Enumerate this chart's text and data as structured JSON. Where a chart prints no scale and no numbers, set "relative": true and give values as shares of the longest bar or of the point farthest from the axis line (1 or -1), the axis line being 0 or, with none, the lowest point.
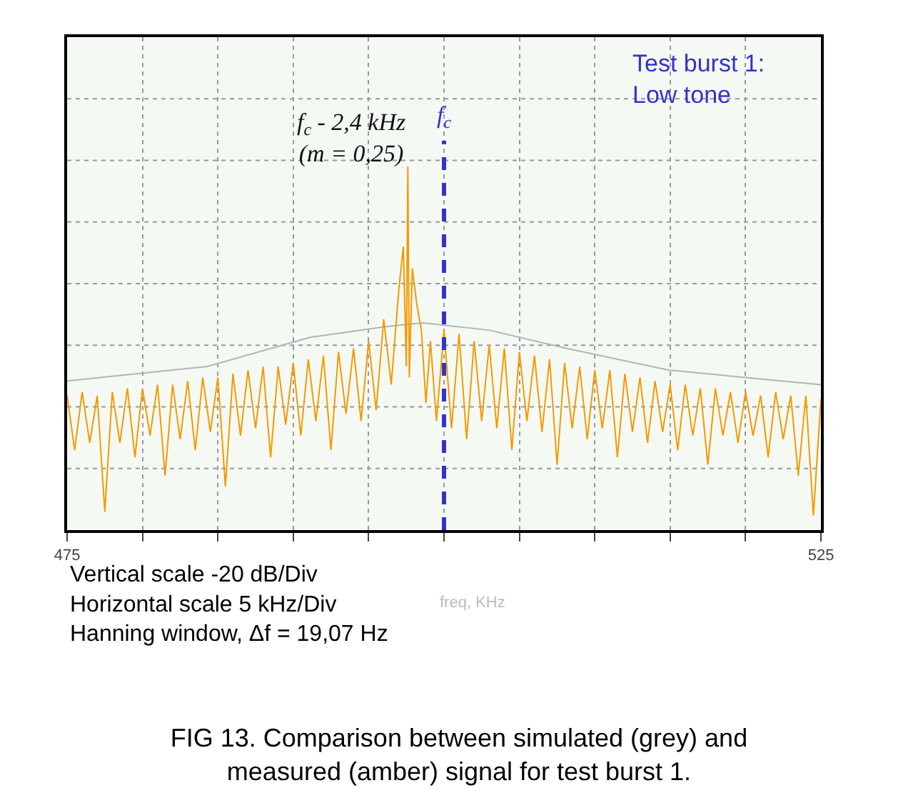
{
  "chart_data": {
    "type": "line",
    "relative": true,
    "title": "FIG 13. Comparison between simulated (grey) and\nmeasured (amber) signal for test burst 1.",
    "xlabel": "freq, KHz",
    "xlim": [
      475,
      525
    ],
    "xticks": [
      475,
      {
        "value": 480,
        "label": null
      },
      {
        "value": 485,
        "label": null
      },
      {
        "value": 490,
        "label": null
      },
      {
        "value": 495,
        "label": null
      },
      {
        "value": 500,
        "label": null
      },
      {
        "value": 505,
        "label": null
      },
      {
        "value": 510,
        "label": null
      },
      {
        "value": 515,
        "label": null
      },
      {
        "value": 520,
        "label": null
      },
      525
    ],
    "grid": true,
    "line_style": "solid",
    "marker": "none",
    "series": [
      {
        "color": "#b4b4b4",
        "x": [
          475,
          484.3,
          491.1,
          496.2,
          498.6,
          503,
          508.1,
          514.9,
          525
        ],
        "values": [
          0.41,
          0.45,
          0.53,
          0.56,
          0.57,
          0.55,
          0.5,
          0.44,
          0.4
        ]
      },
      {
        "color": "#f59a00",
        "x": [
          475,
          475.5,
          476,
          476.5,
          477,
          477.5,
          478,
          478.5,
          479,
          479.5,
          480,
          480.5,
          481,
          481.5,
          482,
          482.5,
          483,
          483.5,
          484,
          484.5,
          485,
          485.5,
          486,
          486.5,
          487,
          487.5,
          488,
          488.5,
          489,
          489.5,
          490,
          490.5,
          491,
          491.5,
          492,
          492.5,
          493,
          493.5,
          494,
          494.5,
          495,
          495.5,
          496,
          496.5,
          497,
          497.3,
          497.5,
          497.6,
          497.7,
          497.9,
          498.2,
          498.5,
          498.8,
          499.1,
          499.5,
          500,
          500.5,
          501,
          501.5,
          502,
          502.5,
          503,
          503.5,
          504,
          504.5,
          505,
          505.5,
          506,
          506.5,
          507,
          507.5,
          508,
          508.5,
          509,
          509.5,
          510,
          510.5,
          511,
          511.5,
          512,
          512.5,
          513,
          513.5,
          514,
          514.5,
          515,
          515.5,
          516,
          516.5,
          517,
          517.5,
          518,
          518.5,
          519,
          519.5,
          520,
          520.5,
          521,
          521.5,
          522,
          522.5,
          523,
          523.5,
          524,
          524.5,
          525
        ],
        "values": [
          0.37,
          0.22,
          0.38,
          0.24,
          0.37,
          0.05,
          0.38,
          0.24,
          0.39,
          0.2,
          0.39,
          0.26,
          0.4,
          0.15,
          0.4,
          0.25,
          0.41,
          0.22,
          0.42,
          0.27,
          0.42,
          0.12,
          0.43,
          0.26,
          0.44,
          0.28,
          0.45,
          0.2,
          0.45,
          0.29,
          0.46,
          0.26,
          0.47,
          0.3,
          0.48,
          0.22,
          0.49,
          0.32,
          0.5,
          0.3,
          0.52,
          0.33,
          0.58,
          0.4,
          0.66,
          0.78,
          0.45,
          1,
          0.42,
          0.72,
          0.62,
          0.55,
          0.35,
          0.52,
          0.3,
          0.55,
          0.28,
          0.54,
          0.25,
          0.52,
          0.3,
          0.51,
          0.28,
          0.5,
          0.22,
          0.49,
          0.3,
          0.48,
          0.27,
          0.47,
          0.18,
          0.46,
          0.28,
          0.45,
          0.25,
          0.44,
          0.28,
          0.44,
          0.2,
          0.43,
          0.27,
          0.42,
          0.24,
          0.41,
          0.27,
          0.4,
          0.22,
          0.4,
          0.26,
          0.39,
          0.18,
          0.39,
          0.26,
          0.38,
          0.24,
          0.38,
          0.26,
          0.37,
          0.2,
          0.38,
          0.25,
          0.37,
          0.15,
          0.37,
          0.04,
          0.36
        ]
      }
    ],
    "ref_lines": [
      {
        "axis": "x",
        "value": 500,
        "label": "f$_{c}$",
        "color": "#3333cc",
        "line_style": "dashed"
      }
    ],
    "annotations": [
      {
        "text": "f$_{c}$ - 2,4 kHz\n(m = 0,25)",
        "x": 497.6,
        "y": 1
      },
      "Test burst 1:\nLow tone",
      "Vertical scale -20 dB/Div\nHorizontal scale 5 kHz/Div\nHanning window, Δf = 19,07 Hz"
    ]
  }
}
